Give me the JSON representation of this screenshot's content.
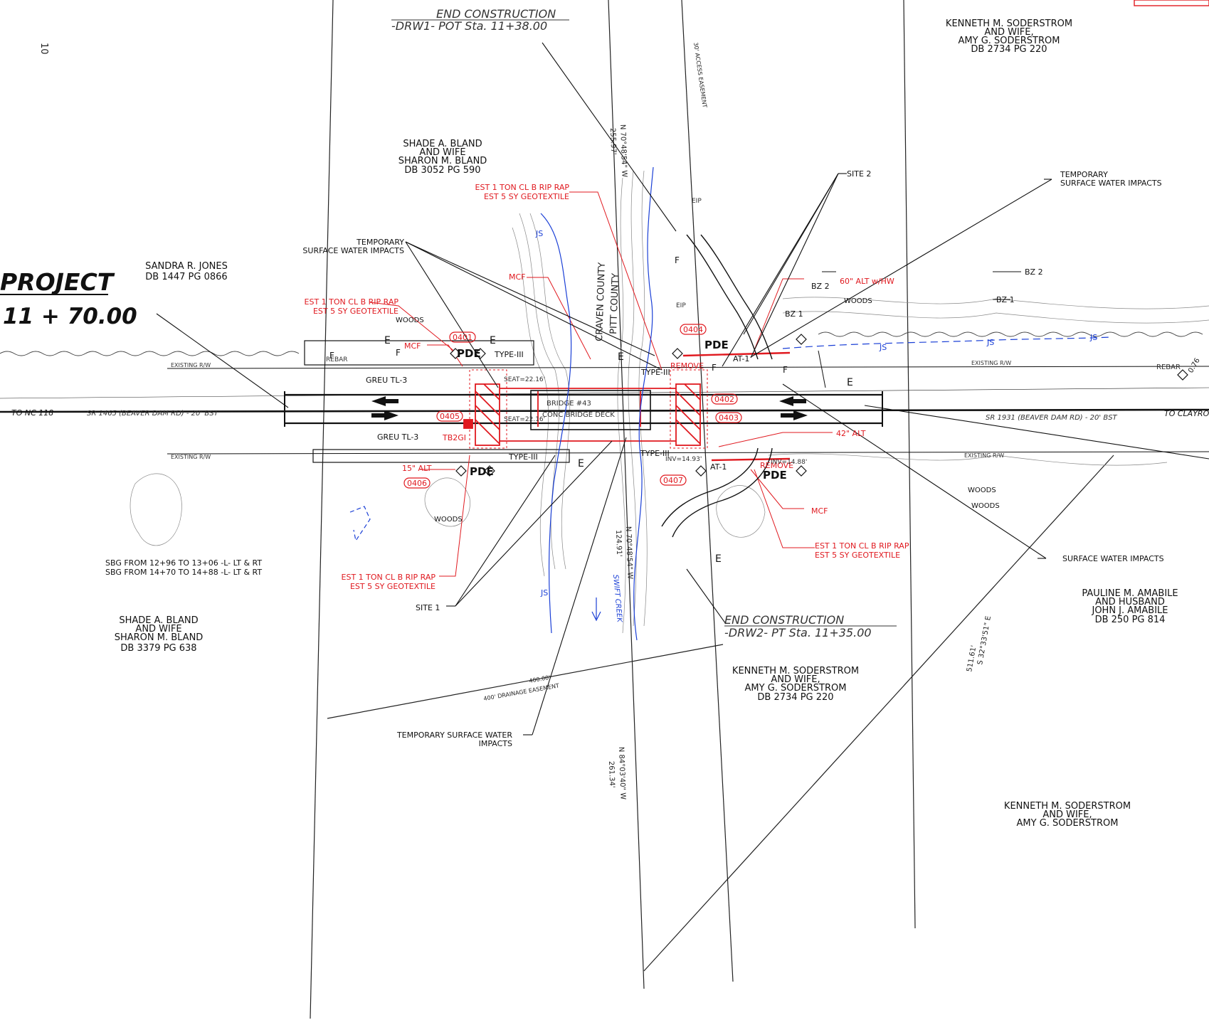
{
  "end_construction_top": {
    "line1": "END CONSTRUCTION",
    "line2": "-DRW1- POT Sta. 11+38.00"
  },
  "end_construction_bottom": {
    "line1": "END CONSTRUCTION",
    "line2": "-DRW2- PT Sta. 11+35.00"
  },
  "project_box": {
    "line1": "PROJECT",
    "line2": "11 + 70.00"
  },
  "owners": {
    "soderstrom_top": [
      "KENNETH M. SODERSTROM",
      "AND WIFE,",
      "AMY G. SODERSTROM",
      "DB 2734 PG 220"
    ],
    "bland_top": [
      "SHADE A. BLAND",
      "AND WIFE",
      "SHARON M. BLAND",
      "DB 3052 PG 590"
    ],
    "jones": [
      "SANDRA R. JONES",
      "DB 1447 PG 0866"
    ],
    "bland_bottom": [
      "SHADE A. BLAND",
      "AND WIFE",
      "SHARON M. BLAND",
      "DB 3379 PG 638"
    ],
    "soderstrom_mid": [
      "KENNETH M. SODERSTROM",
      "AND WIFE,",
      "AMY G. SODERSTROM",
      "DB 2734 PG 220"
    ],
    "amabile": [
      "PAULINE M. AMABILE",
      "AND HUSBAND",
      "JOHN J. AMABILE",
      "DB 250 PG 814"
    ],
    "soderstrom_bottom": [
      "KENNETH M. SODERSTROM",
      "AND WIFE,",
      "AMY G. SODERSTROM"
    ]
  },
  "callouts": {
    "site2": "SITE 2",
    "site1": "SITE 1",
    "temp_sw_right": [
      "TEMPORARY",
      "SURFACE WATER IMPACTS"
    ],
    "temp_sw_left": [
      "TEMPORARY",
      "SURFACE WATER IMPACTS"
    ],
    "temp_sw_bottom": [
      "TEMPORARY SURFACE WATER",
      "IMPACTS"
    ],
    "sw_impacts": "SURFACE WATER IMPACTS",
    "bz2": "BZ 2",
    "bz1": "BZ 1"
  },
  "red_notes": {
    "riprap_top": [
      "EST 1 TON CL B RIP RAP",
      "EST 5 SY GEOTEXTILE"
    ],
    "riprap_left": [
      "EST 1 TON CL B RIP RAP",
      "EST 5 SY GEOTEXTILE"
    ],
    "riprap_bottom_left": [
      "EST 1 TON CL B RIP RAP",
      "EST 5 SY GEOTEXTILE"
    ],
    "riprap_bottom_right": [
      "EST 1 TON CL B RIP RAP",
      "EST 5 SY GEOTEXTILE"
    ],
    "alt60": "60\" ALT w/HW",
    "alt42": "42\" ALT",
    "alt15": "15\" ALT",
    "mcf": "MCF",
    "remove": "REMOVE",
    "tb2gi": "TB2GI",
    "tags": [
      "0401",
      "0402",
      "0403",
      "0404",
      "0405",
      "0406",
      "0407"
    ]
  },
  "road_labels": {
    "to_nc118": "TO NC 118",
    "to_clayroot": "TO CLAYROOT",
    "sr1465": "SR 1465 (BEAVER DAM RD) - 20' BST",
    "sr1931": "SR 1931 (BEAVER DAM RD) - 20' BST",
    "existing_rw": "EXISTING R/W",
    "bridge": "BRIDGE #43",
    "bridge_deck": "CONC BRIDGE DECK",
    "rebar": "REBAR"
  },
  "misc_labels": {
    "pde": "PDE",
    "type3": "TYPE-III",
    "greu": "GREU TL-3",
    "at1": "AT-1",
    "woods": "WOODS",
    "js": "JS",
    "e": "E",
    "f": "F",
    "craven": "CRAVEN COUNTY",
    "pitt": "PITT COUNTY",
    "swift_creek": "SWIFT CREEK",
    "access_easement": "30' ACCESS EASEMENT",
    "drainage_easement": "400' DRAINAGE EASEMENT",
    "bearing1": "N 70°48'54\" W",
    "dist1": "255.97'",
    "bearing2": "N 70°48'54\" W",
    "dist2": "124.91'",
    "bearing3": "N 84°03'40\" W",
    "dist3": "261.34'",
    "bearing4": "S 32°33'51\" E",
    "dist4": "511.61'",
    "seat1": "SEAT=22.16'",
    "seat2": "SEAT=22.16'",
    "inv1": "INV=14.93'",
    "inv2": "INV=14.88'",
    "sbg1": "SBG FROM 12+96 TO 13+06 -L- LT & RT",
    "sbg2": "SBG FROM 14+70 TO 14+88 -L- LT & RT",
    "sheet_no": "10",
    "dist_400": "400.00'",
    "eip": "EIP",
    "corner_mark": "0.76"
  }
}
